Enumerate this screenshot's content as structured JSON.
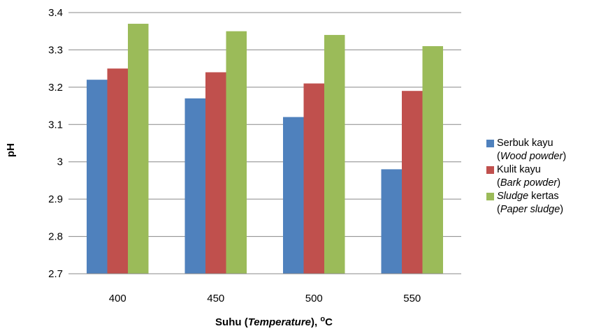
{
  "chart_data": {
    "type": "bar",
    "categories": [
      "400",
      "450",
      "500",
      "550"
    ],
    "series": [
      {
        "name_lines": [
          [
            "Serbuk kayu",
            ""
          ],
          [
            "(",
            "Wood powder",
            ")"
          ]
        ],
        "color": "#4f81bd",
        "values": [
          3.22,
          3.17,
          3.12,
          2.98
        ]
      },
      {
        "name_lines": [
          [
            "Kulit kayu",
            ""
          ],
          [
            "(",
            "Bark powder",
            ")"
          ]
        ],
        "color": "#c0504d",
        "values": [
          3.25,
          3.24,
          3.21,
          3.19
        ]
      },
      {
        "name_lines": [
          [
            "",
            "Sludge",
            " kertas"
          ],
          [
            "(",
            "Paper sludge",
            ")"
          ]
        ],
        "color": "#9bbb59",
        "values": [
          3.37,
          3.35,
          3.34,
          3.31
        ]
      }
    ],
    "ylim": [
      2.7,
      3.4
    ],
    "yticks": [
      "2.7",
      "2.8",
      "2.9",
      "3",
      "3.1",
      "3.2",
      "3.3",
      "3.4"
    ],
    "ylabel": "pH",
    "xlabel_parts": {
      "pre": "Suhu (",
      "italic": "Temperature",
      "post": "),  ",
      "sup": "o",
      "unit": "C"
    },
    "grid": true,
    "legend_position": "right"
  }
}
